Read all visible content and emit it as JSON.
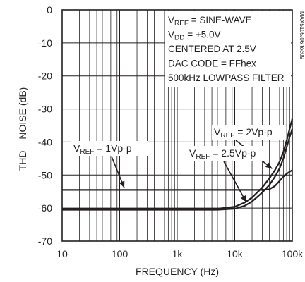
{
  "chart_data": {
    "type": "line",
    "title": "",
    "xlabel": "FREQUENCY (Hz)",
    "ylabel": "THD + NOISE (dB)",
    "x_scale": "log",
    "xlim": [
      10,
      100000
    ],
    "ylim": [
      -70,
      0
    ],
    "x_ticks": [
      {
        "value": 10,
        "label": "10"
      },
      {
        "value": 100,
        "label": "100"
      },
      {
        "value": 1000,
        "label": "1k"
      },
      {
        "value": 10000,
        "label": "10k"
      },
      {
        "value": 100000,
        "label": "100k"
      }
    ],
    "y_ticks": [
      {
        "value": 0,
        "label": "0"
      },
      {
        "value": -10,
        "label": "-10"
      },
      {
        "value": -20,
        "label": "-20"
      },
      {
        "value": -30,
        "label": "-30"
      },
      {
        "value": -40,
        "label": "-40"
      },
      {
        "value": -50,
        "label": "-50"
      },
      {
        "value": -60,
        "label": "-60"
      },
      {
        "value": -70,
        "label": "-70"
      }
    ],
    "grid": true,
    "conditions": [
      {
        "main": "V",
        "sub": "REF",
        "rest": " = SINE-WAVE"
      },
      {
        "main": "V",
        "sub": "DD",
        "rest": " = +5.0V"
      },
      {
        "main": "CENTERED AT 2.5V",
        "sub": "",
        "rest": ""
      },
      {
        "main": "DAC CODE = FFhex",
        "sub": "",
        "rest": ""
      },
      {
        "main": "500kHz LOWPASS FILTER",
        "sub": "",
        "rest": ""
      }
    ],
    "figure_id": "MAX5105/06 toc09",
    "series": [
      {
        "name": "VREF = 1Vp-p",
        "label_main": "V",
        "label_sub": "REF",
        "label_rest": " = 1Vp-p",
        "x": [
          10,
          100,
          1000,
          10000,
          20000,
          30000,
          40000,
          50000,
          60000,
          70000,
          80000,
          100000
        ],
        "y": [
          -54.5,
          -54.5,
          -54.5,
          -54.5,
          -54.5,
          -54.5,
          -54.3,
          -53.3,
          -51.8,
          -50.5,
          -49.6,
          -48.5
        ]
      },
      {
        "name": "VREF = 2Vp-p",
        "label_main": "V",
        "label_sub": "REF",
        "label_rest": " = 2Vp-p",
        "x": [
          10,
          100,
          1000,
          5000,
          10000,
          15000,
          20000,
          30000,
          40000,
          50000,
          60000,
          70000,
          80000,
          90000,
          100000
        ],
        "y": [
          -60.2,
          -60.2,
          -60.2,
          -60.2,
          -59.6,
          -58.3,
          -56.8,
          -53.8,
          -51.0,
          -48.5,
          -46.0,
          -43.0,
          -39.5,
          -36.0,
          -33.0
        ]
      },
      {
        "name": "VREF = 2.5Vp-p",
        "label_main": "V",
        "label_sub": "REF",
        "label_rest": " = 2.5Vp-p",
        "x": [
          10,
          100,
          1000,
          5000,
          10000,
          15000,
          20000,
          30000,
          40000,
          50000,
          60000,
          70000,
          80000,
          90000,
          100000
        ],
        "y": [
          -60.5,
          -60.5,
          -60.5,
          -60.5,
          -60.2,
          -59.3,
          -58.0,
          -55.3,
          -53.0,
          -50.5,
          -48.0,
          -45.0,
          -41.5,
          -38.5,
          -36.0
        ]
      }
    ]
  }
}
